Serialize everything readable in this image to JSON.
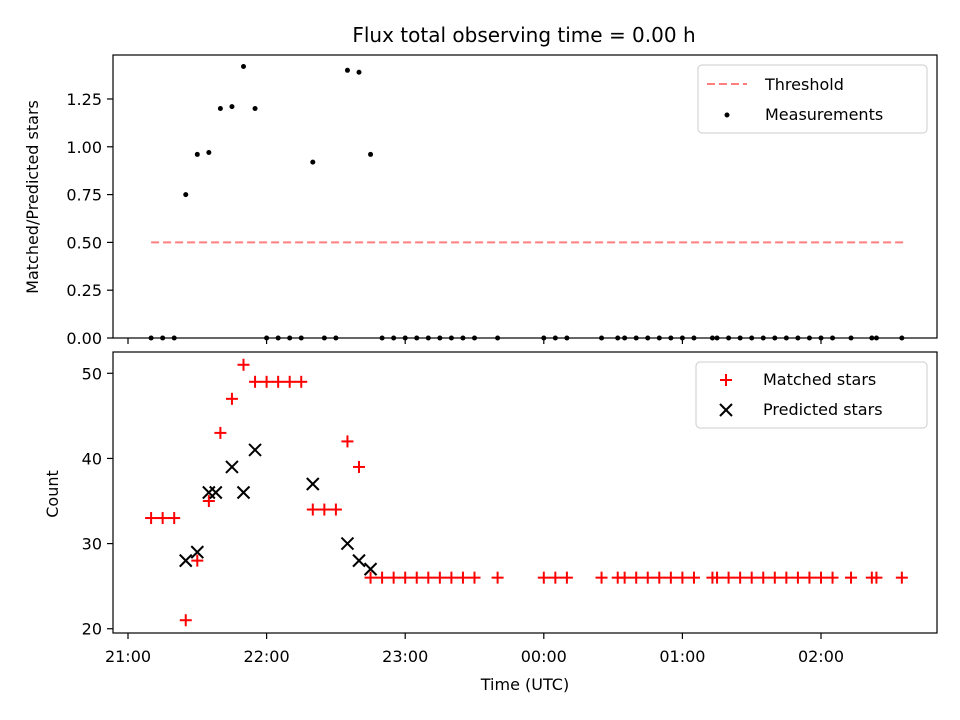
{
  "chart_data": [
    {
      "type": "scatter",
      "title": "Flux total observing time = 0.00 h",
      "xlabel": "",
      "ylabel": "Matched/Predicted stars",
      "ylim": [
        0,
        1.48
      ],
      "yticks": [
        "0.00",
        "0.25",
        "0.50",
        "0.75",
        "1.00",
        "1.25"
      ],
      "ytick_values": [
        0,
        0.25,
        0.5,
        0.75,
        1.0,
        1.25
      ],
      "legend_position": "upper right",
      "threshold": {
        "name": "Threshold",
        "value": 0.5,
        "x_start": "21:10",
        "x_end": "02:36",
        "color": "#ff7f7f"
      },
      "series": [
        {
          "name": "Measurements",
          "color": "#000000",
          "marker": "dot",
          "points": [
            [
              "21:10",
              0
            ],
            [
              "21:15",
              0
            ],
            [
              "21:20",
              0
            ],
            [
              "21:25",
              0.75
            ],
            [
              "21:30",
              0.96
            ],
            [
              "21:35",
              0.97
            ],
            [
              "21:40",
              1.2
            ],
            [
              "21:45",
              1.21
            ],
            [
              "21:50",
              1.42
            ],
            [
              "21:55",
              1.2
            ],
            [
              "22:00",
              0
            ],
            [
              "22:05",
              0
            ],
            [
              "22:10",
              0
            ],
            [
              "22:15",
              0
            ],
            [
              "22:20",
              0.92
            ],
            [
              "22:25",
              0
            ],
            [
              "22:30",
              0
            ],
            [
              "22:35",
              1.4
            ],
            [
              "22:40",
              1.39
            ],
            [
              "22:45",
              0.96
            ],
            [
              "22:50",
              0
            ],
            [
              "22:55",
              0
            ],
            [
              "23:00",
              0
            ],
            [
              "23:05",
              0
            ],
            [
              "23:10",
              0
            ],
            [
              "23:15",
              0
            ],
            [
              "23:20",
              0
            ],
            [
              "23:25",
              0
            ],
            [
              "23:30",
              0
            ],
            [
              "23:40",
              0
            ],
            [
              "00:00",
              0
            ],
            [
              "00:05",
              0
            ],
            [
              "00:10",
              0
            ],
            [
              "00:25",
              0
            ],
            [
              "00:32",
              0
            ],
            [
              "00:35",
              0
            ],
            [
              "00:40",
              0
            ],
            [
              "00:45",
              0
            ],
            [
              "00:50",
              0
            ],
            [
              "00:55",
              0
            ],
            [
              "01:00",
              0
            ],
            [
              "01:05",
              0
            ],
            [
              "01:13",
              0
            ],
            [
              "01:15",
              0
            ],
            [
              "01:20",
              0
            ],
            [
              "01:25",
              0
            ],
            [
              "01:30",
              0
            ],
            [
              "01:35",
              0
            ],
            [
              "01:40",
              0
            ],
            [
              "01:45",
              0
            ],
            [
              "01:50",
              0
            ],
            [
              "01:55",
              0
            ],
            [
              "02:00",
              0
            ],
            [
              "02:05",
              0
            ],
            [
              "02:13",
              0
            ],
            [
              "02:22",
              0
            ],
            [
              "02:24",
              0
            ],
            [
              "02:35",
              0
            ]
          ]
        }
      ]
    },
    {
      "type": "scatter",
      "title": "",
      "xlabel": "Time (UTC)",
      "ylabel": "Count",
      "ylim": [
        19.5,
        52.5
      ],
      "yticks": [
        "20",
        "30",
        "40",
        "50"
      ],
      "ytick_values": [
        20,
        30,
        40,
        50
      ],
      "xticks": [
        "21:00",
        "22:00",
        "23:00",
        "00:00",
        "01:00",
        "02:00"
      ],
      "legend_position": "upper right",
      "series": [
        {
          "name": "Matched stars",
          "color": "#ff0000",
          "marker": "plus",
          "points": [
            [
              "21:10",
              33
            ],
            [
              "21:15",
              33
            ],
            [
              "21:20",
              33
            ],
            [
              "21:25",
              21
            ],
            [
              "21:30",
              28
            ],
            [
              "21:35",
              35
            ],
            [
              "21:40",
              43
            ],
            [
              "21:45",
              47
            ],
            [
              "21:50",
              51
            ],
            [
              "21:55",
              49
            ],
            [
              "22:00",
              49
            ],
            [
              "22:05",
              49
            ],
            [
              "22:10",
              49
            ],
            [
              "22:15",
              49
            ],
            [
              "22:20",
              34
            ],
            [
              "22:25",
              34
            ],
            [
              "22:30",
              34
            ],
            [
              "22:35",
              42
            ],
            [
              "22:40",
              39
            ],
            [
              "22:45",
              26
            ],
            [
              "22:50",
              26
            ],
            [
              "22:55",
              26
            ],
            [
              "23:00",
              26
            ],
            [
              "23:05",
              26
            ],
            [
              "23:10",
              26
            ],
            [
              "23:15",
              26
            ],
            [
              "23:20",
              26
            ],
            [
              "23:25",
              26
            ],
            [
              "23:30",
              26
            ],
            [
              "23:40",
              26
            ],
            [
              "00:00",
              26
            ],
            [
              "00:05",
              26
            ],
            [
              "00:10",
              26
            ],
            [
              "00:25",
              26
            ],
            [
              "00:32",
              26
            ],
            [
              "00:35",
              26
            ],
            [
              "00:40",
              26
            ],
            [
              "00:45",
              26
            ],
            [
              "00:50",
              26
            ],
            [
              "00:55",
              26
            ],
            [
              "01:00",
              26
            ],
            [
              "01:05",
              26
            ],
            [
              "01:13",
              26
            ],
            [
              "01:15",
              26
            ],
            [
              "01:20",
              26
            ],
            [
              "01:25",
              26
            ],
            [
              "01:30",
              26
            ],
            [
              "01:35",
              26
            ],
            [
              "01:40",
              26
            ],
            [
              "01:45",
              26
            ],
            [
              "01:50",
              26
            ],
            [
              "01:55",
              26
            ],
            [
              "02:00",
              26
            ],
            [
              "02:05",
              26
            ],
            [
              "02:13",
              26
            ],
            [
              "02:22",
              26
            ],
            [
              "02:24",
              26
            ],
            [
              "02:35",
              26
            ]
          ]
        },
        {
          "name": "Predicted stars",
          "color": "#000000",
          "marker": "x",
          "points": [
            [
              "21:25",
              28
            ],
            [
              "21:30",
              29
            ],
            [
              "21:35",
              36
            ],
            [
              "21:38",
              36
            ],
            [
              "21:45",
              39
            ],
            [
              "21:50",
              36
            ],
            [
              "21:55",
              41
            ],
            [
              "22:20",
              37
            ],
            [
              "22:35",
              30
            ],
            [
              "22:40",
              28
            ],
            [
              "22:45",
              27
            ]
          ]
        }
      ]
    }
  ]
}
